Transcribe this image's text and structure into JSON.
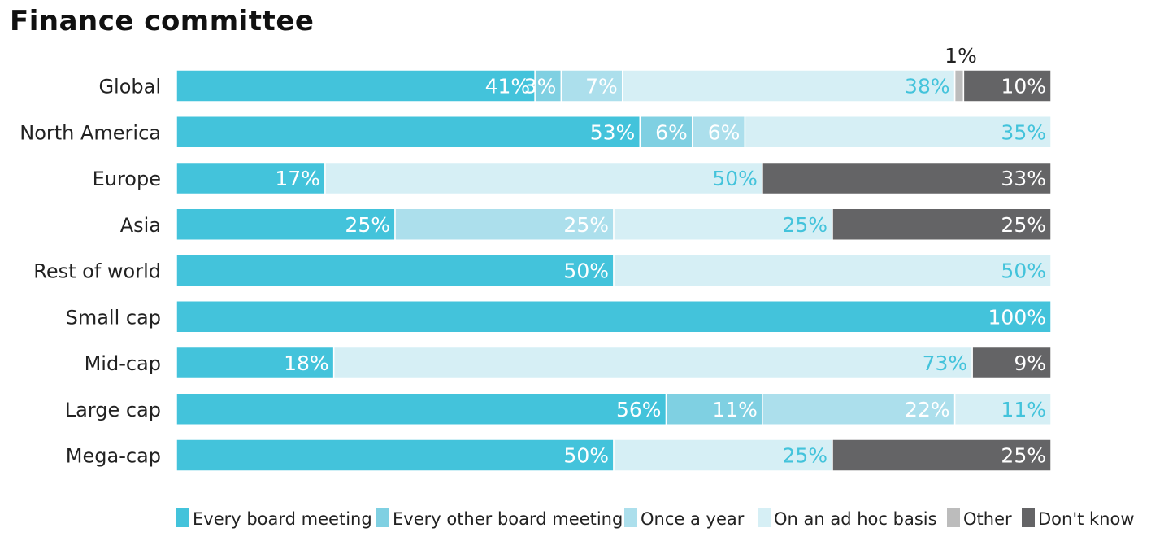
{
  "title": "Finance committee",
  "chart_data": {
    "type": "bar",
    "orientation": "horizontal",
    "stacked": true,
    "title": "Finance committee",
    "xlim": [
      0,
      100
    ],
    "grid": false,
    "legend_placement": "bottom",
    "categories": [
      "Global",
      "North America",
      "Europe",
      "Asia",
      "Rest of world",
      "Small cap",
      "Mid-cap",
      "Large cap",
      "Mega-cap"
    ],
    "series": [
      {
        "name": "Every board meeting",
        "color": "#43c3db",
        "label_color": "#ffffff",
        "values": [
          41,
          53,
          17,
          25,
          50,
          100,
          18,
          56,
          50
        ],
        "labels": [
          "41%",
          "53%",
          "17%",
          "25%",
          "50%",
          "100%",
          "18%",
          "56%",
          "50%"
        ]
      },
      {
        "name": "Every other board meeting",
        "color": "#7fd0e2",
        "label_color": "#ffffff",
        "values": [
          3,
          6,
          0,
          0,
          0,
          0,
          0,
          11,
          0
        ],
        "labels": [
          "3%",
          "6%",
          "",
          "",
          "",
          "",
          "",
          "11%",
          ""
        ]
      },
      {
        "name": "Once a year",
        "color": "#acdfec",
        "label_color": "#ffffff",
        "values": [
          7,
          6,
          0,
          25,
          0,
          0,
          0,
          22,
          0
        ],
        "labels": [
          "7%",
          "6%",
          "",
          "25%",
          "",
          "",
          "",
          "22%",
          ""
        ]
      },
      {
        "name": "On an ad hoc basis",
        "color": "#d6eff5",
        "label_color": "#43c3db",
        "values": [
          38,
          35,
          50,
          25,
          50,
          0,
          73,
          11,
          25
        ],
        "labels": [
          "38%",
          "35%",
          "50%",
          "25%",
          "50%",
          "",
          "73%",
          "11%",
          "25%"
        ]
      },
      {
        "name": "Other",
        "color": "#bcbcbc",
        "label_color": "#ffffff",
        "values": [
          1,
          0,
          0,
          0,
          0,
          0,
          0,
          0,
          0
        ],
        "labels": [
          "1%",
          "",
          "",
          "",
          "",
          "",
          "",
          "",
          ""
        ]
      },
      {
        "name": "Don't know",
        "color": "#646466",
        "label_color": "#ffffff",
        "values": [
          10,
          0,
          33,
          25,
          0,
          0,
          9,
          0,
          25
        ],
        "labels": [
          "10%",
          "",
          "33%",
          "25%",
          "",
          "",
          "9%",
          "",
          "25%"
        ]
      }
    ]
  }
}
